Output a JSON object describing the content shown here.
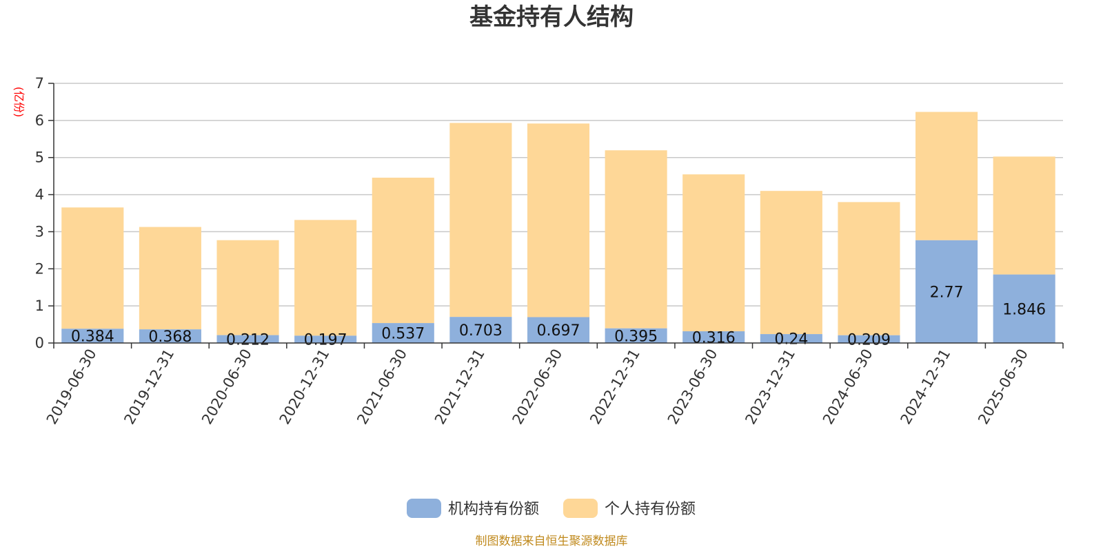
{
  "chart_data": {
    "type": "bar",
    "stacked": true,
    "title": "基金持有人结构",
    "ylabel": "(亿份)",
    "ylim": [
      0,
      7
    ],
    "yticks": [
      "0",
      "1",
      "2",
      "3",
      "4",
      "5",
      "6",
      "7"
    ],
    "grid": true,
    "legend_position": "bottom",
    "categories": [
      "2019-06-30",
      "2019-12-31",
      "2020-06-30",
      "2020-12-31",
      "2021-06-30",
      "2021-12-31",
      "2022-06-30",
      "2022-12-31",
      "2023-06-30",
      "2023-12-31",
      "2024-06-30",
      "2024-12-31",
      "2025-06-30"
    ],
    "series": [
      {
        "name": "机构持有份额",
        "color": "#8eb0dc",
        "values": [
          0.384,
          0.368,
          0.212,
          0.197,
          0.537,
          0.703,
          0.697,
          0.395,
          0.316,
          0.24,
          0.209,
          2.77,
          1.846
        ],
        "labels": [
          "0.384",
          "0.368",
          "0.212",
          "0.197",
          "0.537",
          "0.703",
          "0.697",
          "0.395",
          "0.316",
          "0.24",
          "0.209",
          "2.77",
          "1.846"
        ]
      },
      {
        "name": "个人持有份额",
        "color": "#fed797",
        "values": [
          3.27,
          2.76,
          2.56,
          3.12,
          3.92,
          5.23,
          5.22,
          4.8,
          4.23,
          3.86,
          3.59,
          3.46,
          3.18
        ]
      }
    ]
  },
  "footer": {
    "source": "制图数据来自恒生聚源数据库"
  }
}
